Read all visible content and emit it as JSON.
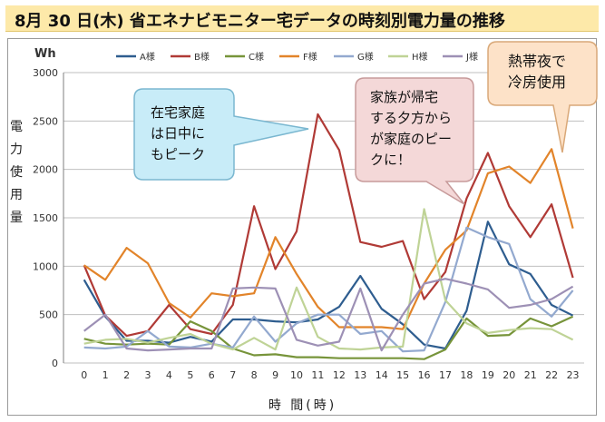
{
  "title": "8月 30 日(木) 省エネナビモニター宅データの時刻別電力量の推移",
  "chart_data": {
    "type": "line",
    "unit_label": "Wh",
    "ylabel": "電力使用量",
    "xlabel": "時 間(時)",
    "ylim": [
      0,
      3000
    ],
    "yticks": [
      0,
      500,
      1000,
      1500,
      2000,
      2500,
      3000
    ],
    "grid": true,
    "legend_position": "top",
    "x": [
      0,
      1,
      2,
      3,
      4,
      5,
      6,
      7,
      8,
      9,
      10,
      11,
      12,
      13,
      14,
      15,
      16,
      17,
      18,
      19,
      20,
      21,
      22,
      23
    ],
    "series": [
      {
        "name": "A様",
        "color": "#2e5d8f",
        "values": [
          860,
          480,
          230,
          230,
          210,
          270,
          220,
          450,
          450,
          430,
          420,
          450,
          580,
          900,
          560,
          400,
          190,
          150,
          540,
          1460,
          1020,
          920,
          600,
          490
        ]
      },
      {
        "name": "B様",
        "color": "#b03a36",
        "values": [
          1010,
          490,
          280,
          330,
          600,
          350,
          300,
          600,
          1620,
          970,
          1360,
          2570,
          2200,
          1250,
          1200,
          1260,
          660,
          940,
          1700,
          2170,
          1620,
          1300,
          1640,
          880
        ]
      },
      {
        "name": "C様",
        "color": "#77943a",
        "values": [
          250,
          200,
          190,
          200,
          190,
          430,
          330,
          150,
          80,
          90,
          60,
          60,
          50,
          50,
          50,
          50,
          40,
          140,
          460,
          280,
          290,
          460,
          380,
          480
        ]
      },
      {
        "name": "F様",
        "color": "#e2842a",
        "values": [
          1010,
          860,
          1190,
          1030,
          620,
          470,
          720,
          690,
          720,
          1300,
          920,
          580,
          370,
          370,
          370,
          350,
          820,
          1170,
          1370,
          1960,
          2030,
          1860,
          2210,
          1390
        ]
      },
      {
        "name": "G様",
        "color": "#93a9cf",
        "values": [
          160,
          150,
          170,
          330,
          170,
          160,
          200,
          160,
          480,
          220,
          410,
          500,
          500,
          300,
          330,
          120,
          130,
          630,
          1400,
          1300,
          1230,
          660,
          480,
          750
        ]
      },
      {
        "name": "H様",
        "color": "#bfd396",
        "values": [
          200,
          240,
          250,
          210,
          260,
          300,
          200,
          140,
          260,
          140,
          780,
          270,
          150,
          140,
          160,
          170,
          1590,
          650,
          410,
          310,
          340,
          360,
          350,
          240
        ]
      },
      {
        "name": "J様",
        "color": "#9d90b5",
        "values": [
          330,
          500,
          150,
          130,
          140,
          150,
          150,
          770,
          780,
          770,
          240,
          180,
          220,
          770,
          130,
          500,
          820,
          870,
          820,
          760,
          570,
          600,
          660,
          790
        ]
      }
    ]
  },
  "callouts": [
    {
      "text": "在宅家庭\nは日中に\nもピーク",
      "fill": "#c8ecf8",
      "stroke": "#7ab7d0"
    },
    {
      "text": "家族が帰宅\nする夕方から\nが家庭のピー\nクに！",
      "fill": "#f4d8d8",
      "stroke": "#c79a9a"
    },
    {
      "text": "熱帯夜で\n冷房使用",
      "fill": "#fde2c8",
      "stroke": "#d9a878"
    }
  ]
}
